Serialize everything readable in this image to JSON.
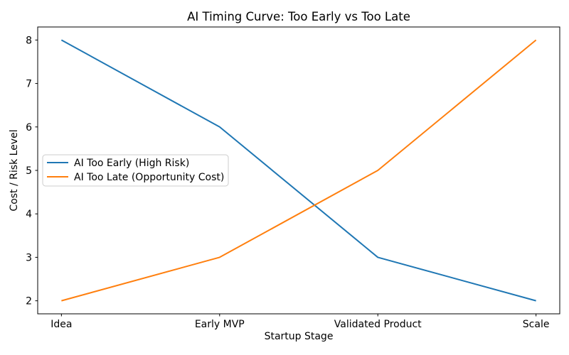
{
  "chart_data": {
    "type": "line",
    "title": "AI Timing Curve: Too Early vs Too Late",
    "xlabel": "Startup Stage",
    "ylabel": "Cost / Risk Level",
    "categories": [
      "Idea",
      "Early MVP",
      "Validated Product",
      "Scale"
    ],
    "series": [
      {
        "id": "too-early",
        "name": "AI Too Early (High Risk)",
        "color": "#1f77b4",
        "values": [
          8,
          6,
          3,
          2
        ]
      },
      {
        "id": "too-late",
        "name": "AI Too Late (Opportunity Cost)",
        "color": "#ff7f0e",
        "values": [
          2,
          3,
          5,
          8
        ]
      }
    ],
    "yticks": [
      2,
      3,
      4,
      5,
      6,
      7,
      8
    ],
    "xlim": [
      -0.15,
      3.15
    ],
    "ylim": [
      1.7,
      8.3
    ],
    "grid": false,
    "legend_position": "center-left",
    "line_width": 2,
    "background_color": "#ffffff",
    "spine_color": "#000000",
    "legend_border_color": "#cccccc",
    "legend_background_color": "#ffffff"
  }
}
